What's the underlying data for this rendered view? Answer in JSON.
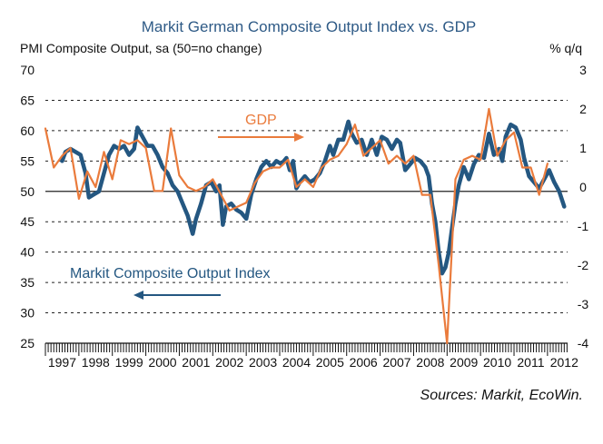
{
  "chart_data": {
    "type": "line",
    "title": "Markit German Composite Output Index vs. GDP",
    "left_axis_label": "PMI Composite Output, sa (50=no change)",
    "right_axis_label": "% q/q",
    "source": "Sources: Markit, EcoWin.",
    "x_tick_labels": [
      "1997",
      "1998",
      "1999",
      "2000",
      "2001",
      "2002",
      "2003",
      "2004",
      "2005",
      "2006",
      "2007",
      "2008",
      "2009",
      "2010",
      "2011",
      "2012"
    ],
    "x_range": [
      1997,
      2012.6
    ],
    "left_ylim": [
      25,
      70
    ],
    "left_ticks": [
      25,
      30,
      35,
      40,
      45,
      50,
      55,
      60,
      65,
      70
    ],
    "right_ylim": [
      -4,
      3
    ],
    "right_ticks": [
      -4,
      -3,
      -2,
      -1,
      0,
      1,
      2,
      3
    ],
    "series": [
      {
        "name": "Markit Composite Output Index",
        "axis": "left",
        "color": "#245781",
        "label_text": "Markit Composite Output Index",
        "points": [
          [
            1997.5,
            55.0
          ],
          [
            1997.6,
            56.5
          ],
          [
            1997.75,
            57.0
          ],
          [
            1997.9,
            56.5
          ],
          [
            1998.05,
            56.0
          ],
          [
            1998.2,
            53.0
          ],
          [
            1998.3,
            49.0
          ],
          [
            1998.45,
            49.5
          ],
          [
            1998.6,
            50.0
          ],
          [
            1998.75,
            53.0
          ],
          [
            1998.9,
            56.0
          ],
          [
            1999.05,
            57.5
          ],
          [
            1999.2,
            57.0
          ],
          [
            1999.35,
            57.5
          ],
          [
            1999.5,
            56.0
          ],
          [
            1999.65,
            57.0
          ],
          [
            1999.75,
            60.5
          ],
          [
            1999.9,
            59.0
          ],
          [
            2000.05,
            57.5
          ],
          [
            2000.2,
            57.5
          ],
          [
            2000.35,
            56.0
          ],
          [
            2000.5,
            54.0
          ],
          [
            2000.65,
            53.0
          ],
          [
            2000.8,
            51.0
          ],
          [
            2000.95,
            50.0
          ],
          [
            2001.1,
            48.0
          ],
          [
            2001.25,
            46.0
          ],
          [
            2001.4,
            43.0
          ],
          [
            2001.5,
            45.5
          ],
          [
            2001.65,
            48.0
          ],
          [
            2001.8,
            51.0
          ],
          [
            2001.95,
            51.5
          ],
          [
            2002.1,
            50.0
          ],
          [
            2002.2,
            51.0
          ],
          [
            2002.3,
            44.5
          ],
          [
            2002.4,
            47.5
          ],
          [
            2002.55,
            48.0
          ],
          [
            2002.7,
            47.0
          ],
          [
            2002.85,
            46.5
          ],
          [
            2003.0,
            45.5
          ],
          [
            2003.15,
            49.5
          ],
          [
            2003.3,
            52.0
          ],
          [
            2003.45,
            54.0
          ],
          [
            2003.6,
            55.0
          ],
          [
            2003.75,
            54.0
          ],
          [
            2003.9,
            55.0
          ],
          [
            2004.05,
            54.5
          ],
          [
            2004.2,
            55.5
          ],
          [
            2004.3,
            53.5
          ],
          [
            2004.4,
            55.0
          ],
          [
            2004.5,
            50.5
          ],
          [
            2004.6,
            51.5
          ],
          [
            2004.75,
            52.5
          ],
          [
            2004.9,
            51.5
          ],
          [
            2005.05,
            52.0
          ],
          [
            2005.2,
            53.0
          ],
          [
            2005.35,
            55.0
          ],
          [
            2005.5,
            57.5
          ],
          [
            2005.6,
            56.0
          ],
          [
            2005.75,
            58.5
          ],
          [
            2005.9,
            58.5
          ],
          [
            2006.05,
            61.5
          ],
          [
            2006.15,
            59.5
          ],
          [
            2006.3,
            58.0
          ],
          [
            2006.45,
            58.5
          ],
          [
            2006.6,
            56.0
          ],
          [
            2006.75,
            58.5
          ],
          [
            2006.9,
            56.0
          ],
          [
            2007.05,
            59.0
          ],
          [
            2007.2,
            58.5
          ],
          [
            2007.35,
            57.0
          ],
          [
            2007.5,
            58.5
          ],
          [
            2007.6,
            58.0
          ],
          [
            2007.75,
            53.5
          ],
          [
            2007.9,
            54.5
          ],
          [
            2008.05,
            55.5
          ],
          [
            2008.2,
            55.0
          ],
          [
            2008.35,
            54.0
          ],
          [
            2008.45,
            52.5
          ],
          [
            2008.55,
            48.0
          ],
          [
            2008.65,
            45.0
          ],
          [
            2008.75,
            40.0
          ],
          [
            2008.85,
            36.5
          ],
          [
            2008.95,
            37.5
          ],
          [
            2009.05,
            40.0
          ],
          [
            2009.15,
            44.0
          ],
          [
            2009.25,
            48.0
          ],
          [
            2009.35,
            51.0
          ],
          [
            2009.5,
            54.0
          ],
          [
            2009.65,
            52.0
          ],
          [
            2009.8,
            54.5
          ],
          [
            2009.95,
            56.0
          ],
          [
            2010.1,
            55.5
          ],
          [
            2010.25,
            59.5
          ],
          [
            2010.4,
            56.0
          ],
          [
            2010.55,
            57.0
          ],
          [
            2010.65,
            55.0
          ],
          [
            2010.75,
            59.0
          ],
          [
            2010.9,
            61.0
          ],
          [
            2011.05,
            60.5
          ],
          [
            2011.2,
            58.5
          ],
          [
            2011.3,
            55.5
          ],
          [
            2011.45,
            52.5
          ],
          [
            2011.6,
            51.5
          ],
          [
            2011.75,
            50.5
          ],
          [
            2011.9,
            52.0
          ],
          [
            2012.05,
            53.5
          ],
          [
            2012.2,
            51.5
          ],
          [
            2012.35,
            50.0
          ],
          [
            2012.5,
            47.5
          ]
        ]
      },
      {
        "name": "GDP",
        "axis": "right",
        "color": "#ea7b3c",
        "label_text": "GDP",
        "points": [
          [
            1997.0,
            1.5
          ],
          [
            1997.25,
            0.5
          ],
          [
            1997.5,
            0.8
          ],
          [
            1997.75,
            1.0
          ],
          [
            1998.0,
            -0.3
          ],
          [
            1998.25,
            0.4
          ],
          [
            1998.5,
            0.0
          ],
          [
            1998.75,
            0.9
          ],
          [
            1999.0,
            0.2
          ],
          [
            1999.25,
            1.2
          ],
          [
            1999.5,
            1.1
          ],
          [
            1999.75,
            1.2
          ],
          [
            2000.0,
            1.0
          ],
          [
            2000.25,
            -0.1
          ],
          [
            2000.5,
            -0.1
          ],
          [
            2000.75,
            1.5
          ],
          [
            2001.0,
            0.3
          ],
          [
            2001.25,
            0.0
          ],
          [
            2001.5,
            -0.1
          ],
          [
            2001.75,
            0.0
          ],
          [
            2002.0,
            0.2
          ],
          [
            2002.25,
            -0.2
          ],
          [
            2002.5,
            -0.6
          ],
          [
            2002.75,
            -0.5
          ],
          [
            2003.0,
            -0.4
          ],
          [
            2003.25,
            0.1
          ],
          [
            2003.5,
            0.4
          ],
          [
            2003.75,
            0.5
          ],
          [
            2004.0,
            0.5
          ],
          [
            2004.25,
            0.7
          ],
          [
            2004.5,
            0.0
          ],
          [
            2004.75,
            0.2
          ],
          [
            2005.0,
            0.0
          ],
          [
            2005.25,
            0.5
          ],
          [
            2005.5,
            0.7
          ],
          [
            2005.75,
            0.8
          ],
          [
            2006.0,
            1.1
          ],
          [
            2006.25,
            1.6
          ],
          [
            2006.5,
            0.8
          ],
          [
            2006.75,
            1.0
          ],
          [
            2007.0,
            1.2
          ],
          [
            2007.25,
            0.6
          ],
          [
            2007.5,
            0.8
          ],
          [
            2007.75,
            0.6
          ],
          [
            2008.0,
            0.8
          ],
          [
            2008.25,
            -0.2
          ],
          [
            2008.5,
            -0.2
          ],
          [
            2008.75,
            -2.0
          ],
          [
            2009.0,
            -4.0
          ],
          [
            2009.25,
            0.2
          ],
          [
            2009.5,
            0.7
          ],
          [
            2009.75,
            0.8
          ],
          [
            2010.0,
            0.7
          ],
          [
            2010.25,
            2.0
          ],
          [
            2010.5,
            0.8
          ],
          [
            2010.75,
            1.2
          ],
          [
            2011.0,
            1.4
          ],
          [
            2011.25,
            0.5
          ],
          [
            2011.5,
            0.5
          ],
          [
            2011.75,
            -0.2
          ],
          [
            2012.0,
            0.6
          ]
        ]
      }
    ]
  }
}
